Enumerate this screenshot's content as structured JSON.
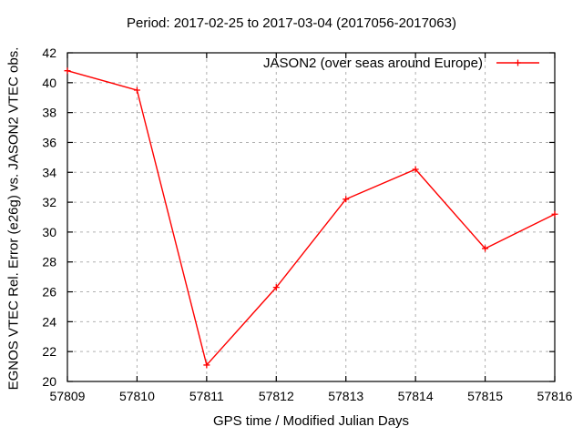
{
  "chart_data": {
    "type": "line",
    "title": "Period: 2017-02-25 to 2017-03-04 (2017056-2017063)",
    "xlabel": "GPS time / Modified Julian Days",
    "ylabel": "EGNOS VTEC Rel. Error (e26g) vs. JASON2 VTEC obs.",
    "x": [
      57809,
      57810,
      57811,
      57812,
      57813,
      57814,
      57815,
      57816
    ],
    "series": [
      {
        "name": "JASON2 (over seas around Europe)",
        "color": "#ff0000",
        "marker": "plus",
        "values": [
          40.8,
          39.5,
          21.1,
          26.3,
          32.2,
          34.2,
          28.9,
          31.2
        ]
      }
    ],
    "xlim": [
      57809,
      57816
    ],
    "ylim": [
      20,
      42
    ],
    "xticks": [
      57809,
      57810,
      57811,
      57812,
      57813,
      57814,
      57815,
      57816
    ],
    "yticks": [
      20,
      22,
      24,
      26,
      28,
      30,
      32,
      34,
      36,
      38,
      40,
      42
    ],
    "grid": true,
    "legend_position": "top-right-inside",
    "colors": {
      "line": "#ff0000",
      "grid": "#b0b0b0",
      "axis": "#000000",
      "text": "#000000",
      "background": "#ffffff"
    }
  }
}
